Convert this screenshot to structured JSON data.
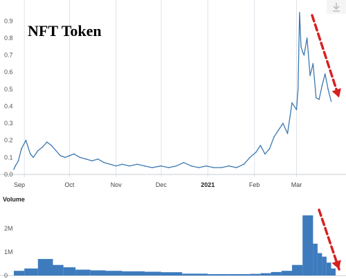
{
  "colors": {
    "line": "#3a78b0",
    "bar": "#3d7bbd",
    "grid": "#dde3ea",
    "arrow": "#d62020",
    "download_icon": "#bdbdbd"
  },
  "icons": {
    "download": "download-icon"
  },
  "chart_data": [
    {
      "type": "line",
      "title": "NFT Token",
      "x_ticks": [
        "Sep",
        "Oct",
        "Nov",
        "Dec",
        "2021",
        "Feb",
        "Mar"
      ],
      "x_ticks_bold": "2021",
      "ylim": [
        0,
        0.95
      ],
      "y_ticks": [
        "0.9",
        "0.8",
        "0.7",
        "0.6",
        "0.5",
        "0.4",
        "0.3",
        "0.2",
        "0.1",
        "0.0"
      ],
      "grid": "x",
      "series": [
        {
          "x": [
            "2020-08-25",
            "2020-08-26",
            "2020-08-28",
            "2020-08-30",
            "2020-09-02",
            "2020-09-05",
            "2020-09-07",
            "2020-09-10",
            "2020-09-13",
            "2020-09-16",
            "2020-09-19",
            "2020-09-22",
            "2020-09-25",
            "2020-09-28",
            "2020-10-01",
            "2020-10-04",
            "2020-10-08",
            "2020-10-12",
            "2020-10-16",
            "2020-10-20",
            "2020-10-24",
            "2020-10-28",
            "2020-11-01",
            "2020-11-05",
            "2020-11-10",
            "2020-11-15",
            "2020-11-20",
            "2020-11-25",
            "2020-12-01",
            "2020-12-06",
            "2020-12-11",
            "2020-12-16",
            "2020-12-21",
            "2020-12-26",
            "2020-12-31",
            "2021-01-05",
            "2021-01-10",
            "2021-01-15",
            "2021-01-20",
            "2021-01-25",
            "2021-01-29",
            "2021-02-02",
            "2021-02-05",
            "2021-02-08",
            "2021-02-11",
            "2021-02-14",
            "2021-02-17",
            "2021-02-20",
            "2021-02-23",
            "2021-02-26",
            "2021-03-01",
            "2021-03-02",
            "2021-03-03",
            "2021-03-04",
            "2021-03-05",
            "2021-03-06",
            "2021-03-08",
            "2021-03-10",
            "2021-03-12",
            "2021-03-14",
            "2021-03-16",
            "2021-03-18",
            "2021-03-20",
            "2021-03-22",
            "2021-03-24"
          ],
          "values": [
            0.03,
            0.05,
            0.08,
            0.15,
            0.2,
            0.12,
            0.1,
            0.14,
            0.16,
            0.19,
            0.17,
            0.14,
            0.11,
            0.1,
            0.11,
            0.12,
            0.1,
            0.09,
            0.08,
            0.09,
            0.07,
            0.06,
            0.05,
            0.06,
            0.05,
            0.06,
            0.05,
            0.04,
            0.05,
            0.04,
            0.05,
            0.07,
            0.05,
            0.04,
            0.05,
            0.04,
            0.04,
            0.05,
            0.04,
            0.06,
            0.1,
            0.13,
            0.17,
            0.12,
            0.15,
            0.22,
            0.26,
            0.3,
            0.24,
            0.42,
            0.38,
            0.5,
            0.95,
            0.75,
            0.72,
            0.7,
            0.8,
            0.58,
            0.65,
            0.45,
            0.44,
            0.52,
            0.59,
            0.5,
            0.43
          ]
        }
      ]
    },
    {
      "type": "bar",
      "title": "Volume",
      "ylim": [
        0,
        2.7
      ],
      "y_ticks": [
        "2M",
        "1M",
        "0"
      ],
      "y_unit": "M",
      "series": [
        {
          "x_start": [
            "2020-08-25",
            "2020-09-01",
            "2020-09-10",
            "2020-09-20",
            "2020-09-27",
            "2020-10-05",
            "2020-10-15",
            "2020-10-25",
            "2020-11-05",
            "2020-11-20",
            "2020-12-01",
            "2020-12-15",
            "2021-01-01",
            "2021-01-15",
            "2021-01-29",
            "2021-02-05",
            "2021-02-12",
            "2021-02-19",
            "2021-02-26",
            "2021-03-05",
            "2021-03-12",
            "2021-03-15",
            "2021-03-18",
            "2021-03-21",
            "2021-03-24"
          ],
          "x_end": [
            "2020-09-01",
            "2020-09-10",
            "2020-09-20",
            "2020-09-27",
            "2020-10-05",
            "2020-10-15",
            "2020-10-25",
            "2020-11-05",
            "2020-11-20",
            "2020-12-01",
            "2020-12-15",
            "2021-01-01",
            "2021-01-15",
            "2021-01-29",
            "2021-02-05",
            "2021-02-12",
            "2021-02-19",
            "2021-02-26",
            "2021-03-05",
            "2021-03-12",
            "2021-03-15",
            "2021-03-18",
            "2021-03-21",
            "2021-03-24",
            "2021-03-27"
          ],
          "values": [
            0.2,
            0.3,
            0.7,
            0.45,
            0.35,
            0.25,
            0.22,
            0.2,
            0.18,
            0.16,
            0.14,
            0.08,
            0.06,
            0.06,
            0.07,
            0.1,
            0.15,
            0.2,
            0.45,
            2.55,
            1.35,
            0.95,
            0.8,
            0.55,
            0.3
          ]
        }
      ]
    }
  ]
}
